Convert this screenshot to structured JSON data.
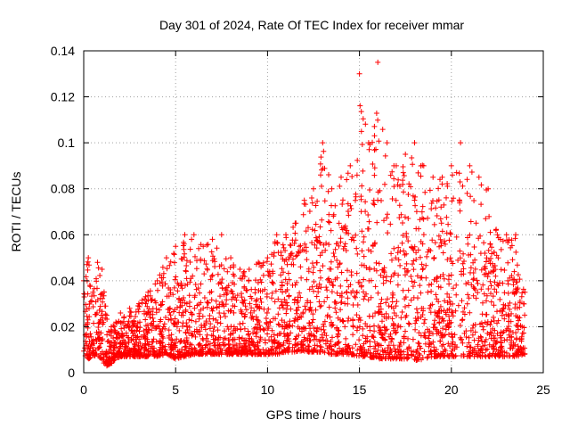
{
  "chart_data": {
    "type": "scatter",
    "title": "Day 301 of 2024, Rate Of TEC Index for receiver mmar",
    "xlabel": "GPS time / hours",
    "ylabel": "ROTI / TECUs",
    "xlim": [
      0,
      25
    ],
    "ylim": [
      0,
      0.14
    ],
    "xticks": [
      0,
      5,
      10,
      15,
      20,
      25
    ],
    "yticks": [
      0,
      0.02,
      0.04,
      0.06,
      0.08,
      0.1,
      0.12,
      0.14
    ],
    "xtick_labels": [
      "0",
      "5",
      "10",
      "15",
      "20",
      "25"
    ],
    "ytick_labels": [
      "0",
      "0.02",
      "0.04",
      "0.06",
      "0.08",
      "0.1",
      "0.12",
      "0.14"
    ],
    "grid": true,
    "marker": "+",
    "color": "#ff0000",
    "series": [
      {
        "name": "ROTI",
        "envelope_hours": [
          0,
          0.25,
          0.5,
          0.75,
          1,
          1.25,
          1.5,
          1.75,
          2,
          2.5,
          3,
          3.5,
          4,
          4.5,
          5,
          5.5,
          6,
          6.5,
          7,
          7.5,
          8,
          8.5,
          9,
          9.5,
          10,
          10.5,
          11,
          11.5,
          12,
          12.5,
          13,
          13.5,
          14,
          14.5,
          15,
          15.5,
          16,
          16.5,
          17,
          17.5,
          18,
          18.5,
          19,
          19.5,
          20,
          20.5,
          21,
          21.5,
          22,
          22.5,
          23,
          23.5,
          24
        ],
        "envelope_min": [
          0.008,
          0.006,
          0.007,
          0.008,
          0.005,
          0.003,
          0.004,
          0.006,
          0.007,
          0.007,
          0.007,
          0.007,
          0.007,
          0.008,
          0.006,
          0.007,
          0.008,
          0.008,
          0.008,
          0.008,
          0.008,
          0.008,
          0.008,
          0.008,
          0.008,
          0.008,
          0.009,
          0.009,
          0.009,
          0.009,
          0.009,
          0.008,
          0.008,
          0.008,
          0.007,
          0.007,
          0.006,
          0.006,
          0.006,
          0.006,
          0.005,
          0.006,
          0.007,
          0.007,
          0.007,
          0.007,
          0.007,
          0.007,
          0.007,
          0.007,
          0.007,
          0.007,
          0.008
        ],
        "envelope_max": [
          0.04,
          0.05,
          0.035,
          0.048,
          0.045,
          0.025,
          0.02,
          0.022,
          0.026,
          0.028,
          0.03,
          0.035,
          0.04,
          0.05,
          0.055,
          0.06,
          0.06,
          0.055,
          0.058,
          0.06,
          0.05,
          0.045,
          0.045,
          0.048,
          0.05,
          0.06,
          0.06,
          0.065,
          0.075,
          0.08,
          0.1,
          0.08,
          0.085,
          0.09,
          0.13,
          0.1,
          0.135,
          0.1,
          0.09,
          0.095,
          0.1,
          0.09,
          0.085,
          0.085,
          0.09,
          0.1,
          0.09,
          0.085,
          0.08,
          0.06,
          0.06,
          0.06,
          0.035
        ],
        "sample_count": 3000
      }
    ]
  }
}
